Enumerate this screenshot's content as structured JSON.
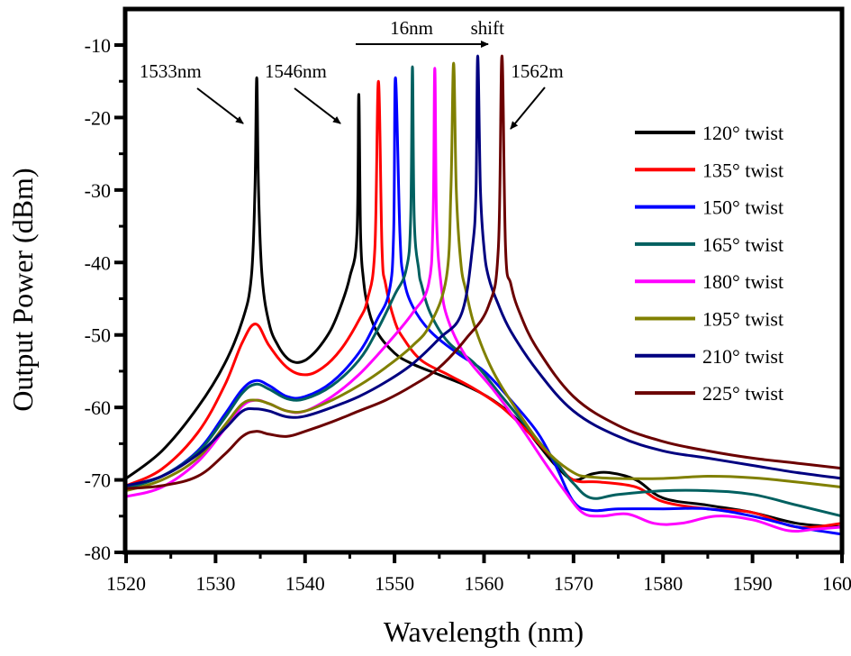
{
  "chart_data": {
    "type": "line",
    "title": "",
    "xlabel": "Wavelength (nm)",
    "ylabel": "Output Power (dBm)",
    "xlim": [
      1520,
      1600
    ],
    "ylim": [
      -80,
      -5
    ],
    "xticks": [
      1520,
      1530,
      1540,
      1550,
      1560,
      1570,
      1580,
      1590,
      1600
    ],
    "xtick_labels": [
      "1520",
      "1530",
      "1540",
      "1550",
      "1560",
      "1570",
      "1580",
      "1590",
      "1600"
    ],
    "yticks": [
      -10,
      -20,
      -30,
      -40,
      -50,
      -60,
      -70,
      -80
    ],
    "ytick_labels": [
      "-10",
      "-20",
      "-30",
      "-40",
      "-50",
      "-60",
      "-70",
      "-80"
    ],
    "grid": false,
    "legend_position": "right",
    "annotations": [
      {
        "text": "1533nm",
        "x": 1521.5,
        "y": -14.5
      },
      {
        "text": "1546nm",
        "x": 1535.5,
        "y": -14.5
      },
      {
        "text": "1562m",
        "x": 1563,
        "y": -14.5
      },
      {
        "text": "16nm",
        "x": 1549.5,
        "y": -8.5
      },
      {
        "text": "shift",
        "x": 1558.5,
        "y": -8.5
      }
    ],
    "series": [
      {
        "name": "120° twist",
        "color": "#000000",
        "x": [
          1520,
          1524,
          1528,
          1531,
          1533,
          1534,
          1534.4,
          1534.6,
          1534.8,
          1535.2,
          1536,
          1537,
          1538,
          1539,
          1540,
          1541,
          1542,
          1543,
          1544,
          1545,
          1545.8,
          1546,
          1546.2,
          1546.5,
          1547,
          1548,
          1550,
          1552,
          1555,
          1558,
          1561,
          1564,
          1566,
          1568,
          1570,
          1572,
          1574,
          1577,
          1580,
          1585,
          1590,
          1595,
          1600
        ],
        "y": [
          -69.8,
          -66,
          -60,
          -54,
          -48,
          -42,
          -30,
          -14.5,
          -30,
          -42,
          -48.5,
          -51.5,
          -53.2,
          -53.8,
          -53.5,
          -52.5,
          -51,
          -49,
          -46,
          -42,
          -36,
          -16.8,
          -36,
          -42,
          -46,
          -49.5,
          -52.5,
          -54,
          -55.5,
          -57,
          -59,
          -62,
          -65,
          -68,
          -70,
          -69.2,
          -69,
          -70,
          -72.5,
          -73.5,
          -74.5,
          -76,
          -76.5
        ]
      },
      {
        "name": "135° twist",
        "color": "#ff0000",
        "x": [
          1520,
          1524,
          1528,
          1531,
          1533,
          1534.5,
          1536,
          1538,
          1540,
          1542,
          1544,
          1546,
          1547,
          1547.8,
          1548.2,
          1548.6,
          1549,
          1550,
          1551,
          1553,
          1556,
          1559,
          1562,
          1565,
          1568,
          1570,
          1573,
          1577,
          1580,
          1585,
          1590,
          1595,
          1600
        ],
        "y": [
          -70.8,
          -68.5,
          -63.5,
          -57,
          -51,
          -48.5,
          -51.5,
          -54.5,
          -55.5,
          -54.5,
          -52,
          -48,
          -45,
          -38,
          -15,
          -38,
          -43,
          -48,
          -50.5,
          -53.5,
          -55.5,
          -57.5,
          -60,
          -63.5,
          -67.5,
          -70,
          -70.3,
          -71,
          -73,
          -74,
          -74.5,
          -76.5,
          -76
        ]
      },
      {
        "name": "150° twist",
        "color": "#0000ff",
        "x": [
          1520,
          1524,
          1528,
          1531,
          1533,
          1534.5,
          1536,
          1538,
          1540,
          1543,
          1546,
          1548,
          1549.4,
          1549.9,
          1550.1,
          1550.6,
          1551,
          1552,
          1554,
          1557,
          1560,
          1563,
          1566,
          1568,
          1570,
          1572,
          1575,
          1580,
          1585,
          1590,
          1595,
          1600
        ],
        "y": [
          -71,
          -69.5,
          -66,
          -61,
          -57.5,
          -56.3,
          -57,
          -58.5,
          -58.5,
          -56.5,
          -52.5,
          -48,
          -44,
          -36,
          -14.5,
          -36,
          -42,
          -46,
          -49.5,
          -52.5,
          -55,
          -59,
          -63.5,
          -68,
          -73,
          -74.2,
          -74,
          -74,
          -74,
          -75,
          -76.5,
          -77.5
        ]
      },
      {
        "name": "165° twist",
        "color": "#006060",
        "x": [
          1520,
          1524,
          1528,
          1531,
          1533,
          1534.5,
          1536,
          1538,
          1540,
          1543,
          1546,
          1548,
          1550,
          1551.3,
          1551.8,
          1552,
          1552.2,
          1552.7,
          1553,
          1554,
          1556,
          1559,
          1562,
          1565,
          1568,
          1570,
          1572,
          1575,
          1580,
          1585,
          1590,
          1595,
          1600
        ],
        "y": [
          -71.2,
          -69.5,
          -66.2,
          -61.5,
          -58,
          -56.8,
          -57.5,
          -58.8,
          -58.8,
          -57,
          -53.5,
          -49.5,
          -44.5,
          -41,
          -34,
          -13,
          -34,
          -41,
          -43,
          -47,
          -51,
          -54,
          -58.5,
          -63,
          -67.5,
          -70.5,
          -72.5,
          -72,
          -71.5,
          -71.5,
          -72,
          -73.5,
          -75
        ]
      },
      {
        "name": "180° twist",
        "color": "#ff00ff",
        "x": [
          1520,
          1524,
          1528,
          1531,
          1533,
          1534.5,
          1536,
          1538,
          1540,
          1543,
          1546,
          1549,
          1552,
          1553.8,
          1554.3,
          1554.5,
          1554.7,
          1555.2,
          1556,
          1558,
          1561,
          1564,
          1567,
          1569,
          1571,
          1573,
          1576,
          1579,
          1582,
          1586,
          1590,
          1594,
          1597,
          1600
        ],
        "y": [
          -72.3,
          -71,
          -67.5,
          -63,
          -59.8,
          -59,
          -59.5,
          -60.5,
          -60.5,
          -58.5,
          -55.5,
          -51.5,
          -47,
          -43,
          -34,
          -13.2,
          -34,
          -43,
          -48,
          -53,
          -57.5,
          -62.5,
          -68,
          -71.5,
          -74.5,
          -75,
          -74.7,
          -76,
          -76,
          -75,
          -75.5,
          -77,
          -76.8,
          -76.5
        ]
      },
      {
        "name": "195° twist",
        "color": "#808000",
        "x": [
          1520,
          1524,
          1528,
          1531,
          1533,
          1534.5,
          1536,
          1538,
          1540,
          1543,
          1546,
          1549,
          1552,
          1554,
          1555.8,
          1556.3,
          1556.6,
          1556.9,
          1557.4,
          1558,
          1559,
          1561,
          1564,
          1567,
          1570,
          1572,
          1575,
          1580,
          1585,
          1590,
          1595,
          1600
        ],
        "y": [
          -71.5,
          -70,
          -67,
          -62.5,
          -59.5,
          -59,
          -59.5,
          -60.5,
          -60.5,
          -59,
          -57,
          -54.5,
          -51.5,
          -48.5,
          -42,
          -30,
          -12.5,
          -30,
          -40,
          -44,
          -49,
          -55,
          -61,
          -66,
          -69,
          -69.6,
          -69.8,
          -69.8,
          -69.5,
          -69.7,
          -70.3,
          -71
        ]
      },
      {
        "name": "210° twist",
        "color": "#000080",
        "x": [
          1520,
          1524,
          1528,
          1531,
          1533,
          1534.5,
          1536,
          1538,
          1540,
          1543,
          1546,
          1549,
          1552,
          1555,
          1557.5,
          1558.7,
          1559.1,
          1559.3,
          1559.6,
          1560,
          1560.5,
          1561.5,
          1563,
          1566,
          1570,
          1575,
          1580,
          1585,
          1590,
          1595,
          1600
        ],
        "y": [
          -70.8,
          -69.5,
          -66.5,
          -63,
          -60.5,
          -60.2,
          -60.5,
          -61.3,
          -61.2,
          -60,
          -58.5,
          -56.5,
          -54,
          -50.5,
          -47,
          -38,
          -30,
          -11.5,
          -30,
          -38,
          -42,
          -45.5,
          -49.5,
          -55,
          -60.5,
          -64,
          -66,
          -67,
          -68,
          -69,
          -69.8
        ]
      },
      {
        "name": "225° twist",
        "color": "#6b0000",
        "x": [
          1520,
          1524,
          1528,
          1531,
          1533,
          1534.5,
          1536,
          1538,
          1540,
          1543,
          1546,
          1549,
          1552,
          1555,
          1558,
          1560.5,
          1561.6,
          1562,
          1562.4,
          1563,
          1564,
          1566,
          1570,
          1575,
          1580,
          1585,
          1590,
          1595,
          1600
        ],
        "y": [
          -71.2,
          -70.8,
          -69.5,
          -66.5,
          -64,
          -63.3,
          -63.7,
          -64,
          -63.3,
          -62,
          -60.5,
          -59,
          -57,
          -54.5,
          -50.5,
          -46,
          -38,
          -11.5,
          -38,
          -43,
          -47,
          -52,
          -58.5,
          -62.5,
          -64.7,
          -66,
          -67,
          -67.7,
          -68.4
        ]
      }
    ]
  }
}
